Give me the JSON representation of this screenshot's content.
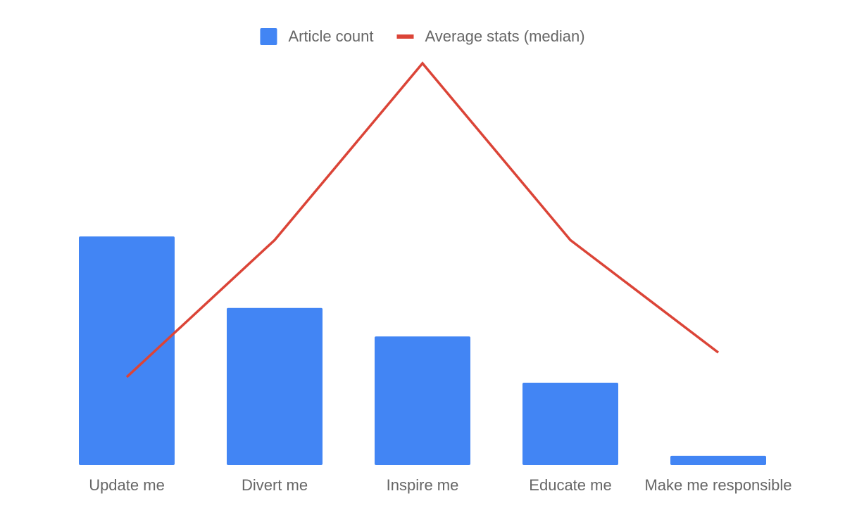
{
  "chart_data": {
    "type": "bar-line",
    "categories": [
      "Update me",
      "Divert me",
      "Inspire me",
      "Educate me",
      "Make me responsible"
    ],
    "series": [
      {
        "name": "Article count",
        "type": "bar",
        "color": "#4285f4",
        "values": [
          56.9,
          39.1,
          32.0,
          20.5,
          2.3
        ]
      },
      {
        "name": "Average stats (median)",
        "type": "line",
        "axis": "y2",
        "color": "#db4437",
        "values": [
          21.9,
          56.0,
          100,
          56.0,
          28.0
        ]
      }
    ],
    "ylim": [
      0,
      100
    ],
    "y2lim": [
      0,
      100
    ],
    "grid": false,
    "legend": "top"
  }
}
